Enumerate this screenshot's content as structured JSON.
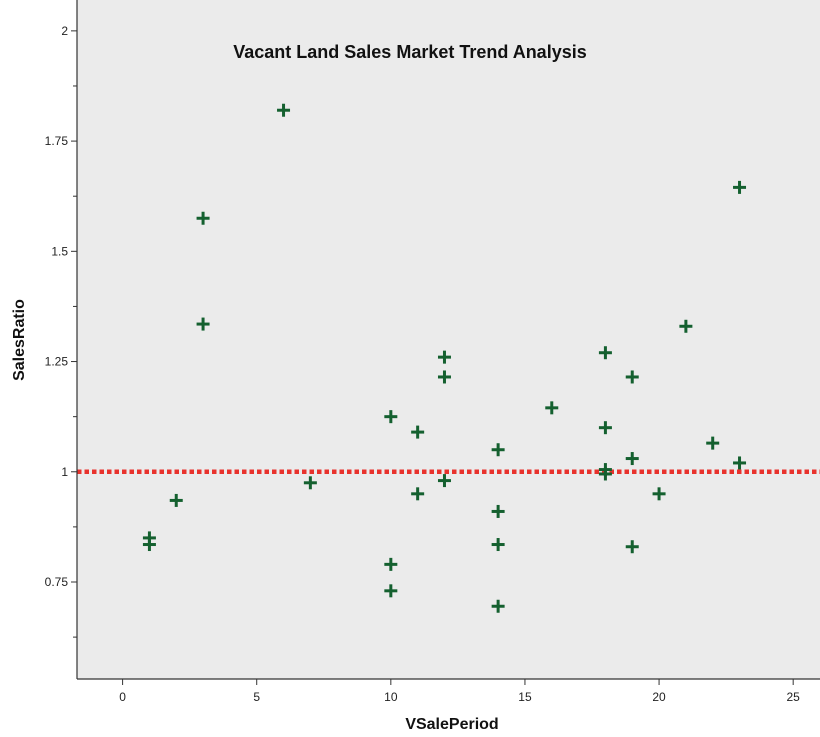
{
  "chart_data": {
    "type": "scatter",
    "title": "Vacant Land Sales Market Trend Analysis",
    "xlabel": "VSalePeriod",
    "ylabel": "SalesRatio",
    "xlim": [
      -1.7,
      26
    ],
    "ylim": [
      0.53,
      2.07
    ],
    "xticks": [
      0,
      5,
      10,
      15,
      20,
      25
    ],
    "xtick_labels": [
      "0",
      "5",
      "10",
      "15",
      "20",
      "25"
    ],
    "yticks": [
      0.75,
      1,
      1.25,
      1.5,
      1.75,
      2
    ],
    "ytick_labels": [
      "0.75",
      "1",
      "1.25",
      "1.5",
      "1.75",
      "2"
    ],
    "y_minor_ticks": [
      0.625,
      0.875,
      1.125,
      1.375,
      1.625,
      1.875
    ],
    "grid": false,
    "reference_line": {
      "y": 1.0,
      "style": "dotted",
      "color": "#e8322c"
    },
    "marker": "plus",
    "marker_color": "#14602f",
    "plot_background": "#ebebeb",
    "points": [
      {
        "x": 1,
        "y": 0.85
      },
      {
        "x": 1,
        "y": 0.835
      },
      {
        "x": 2,
        "y": 0.935
      },
      {
        "x": 3,
        "y": 1.575
      },
      {
        "x": 3,
        "y": 1.335
      },
      {
        "x": 6,
        "y": 1.82
      },
      {
        "x": 7,
        "y": 0.975
      },
      {
        "x": 10,
        "y": 1.125
      },
      {
        "x": 10,
        "y": 0.79
      },
      {
        "x": 10,
        "y": 0.73
      },
      {
        "x": 11,
        "y": 1.09
      },
      {
        "x": 11,
        "y": 0.95
      },
      {
        "x": 12,
        "y": 1.26
      },
      {
        "x": 12,
        "y": 1.215
      },
      {
        "x": 12,
        "y": 0.98
      },
      {
        "x": 14,
        "y": 1.05
      },
      {
        "x": 14,
        "y": 0.91
      },
      {
        "x": 14,
        "y": 0.835
      },
      {
        "x": 14,
        "y": 0.695
      },
      {
        "x": 16,
        "y": 1.145
      },
      {
        "x": 18,
        "y": 1.27
      },
      {
        "x": 18,
        "y": 1.1
      },
      {
        "x": 18,
        "y": 1.005
      },
      {
        "x": 18,
        "y": 0.995
      },
      {
        "x": 19,
        "y": 1.215
      },
      {
        "x": 19,
        "y": 1.03
      },
      {
        "x": 19,
        "y": 0.83
      },
      {
        "x": 20,
        "y": 0.95
      },
      {
        "x": 21,
        "y": 1.33
      },
      {
        "x": 22,
        "y": 1.065
      },
      {
        "x": 23,
        "y": 1.645
      },
      {
        "x": 23,
        "y": 1.02
      }
    ]
  }
}
